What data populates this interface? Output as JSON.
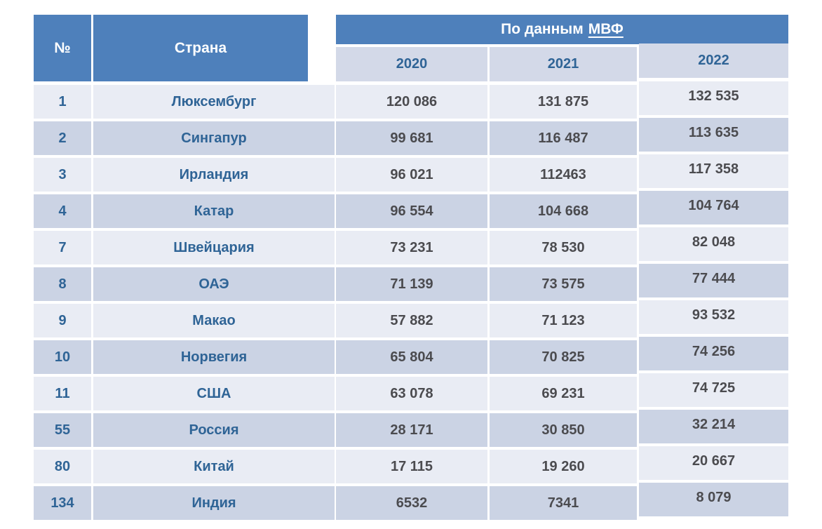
{
  "colors": {
    "header_blue": "#4e80bb",
    "subheader_bg": "#d3d9e8",
    "row_light": "#e9ecf4",
    "row_dark": "#cbd3e4",
    "blue_text": "#2f6496",
    "number_text": "#4b4b4f",
    "white_text": "#ffffff",
    "page_bg": "#ffffff"
  },
  "table": {
    "header": {
      "num": "№",
      "country": "Страна",
      "imf_prefix": "По данным",
      "imf_link": "МВФ",
      "years": {
        "y2020": "2020",
        "y2021": "2021",
        "y2022": "2022"
      }
    },
    "rows": [
      {
        "rank": "1",
        "country": "Люксембург",
        "y2020": "120 086",
        "y2021": "131 875",
        "y2022": "132 535"
      },
      {
        "rank": "2",
        "country": "Сингапур",
        "y2020": "99 681",
        "y2021": "116 487",
        "y2022": "113 635"
      },
      {
        "rank": "3",
        "country": "Ирландия",
        "y2020": "96 021",
        "y2021": "112463",
        "y2022": "117 358"
      },
      {
        "rank": "4",
        "country": "Катар",
        "y2020": "96 554",
        "y2021": "104 668",
        "y2022": "104 764"
      },
      {
        "rank": "7",
        "country": "Швейцария",
        "y2020": "73 231",
        "y2021": "78 530",
        "y2022": "82 048"
      },
      {
        "rank": "8",
        "country": "ОАЭ",
        "y2020": "71 139",
        "y2021": "73 575",
        "y2022": "77 444"
      },
      {
        "rank": "9",
        "country": "Макао",
        "y2020": "57 882",
        "y2021": "71 123",
        "y2022": "93 532"
      },
      {
        "rank": "10",
        "country": "Норвегия",
        "y2020": "65 804",
        "y2021": "70 825",
        "y2022": "74 256"
      },
      {
        "rank": "11",
        "country": "США",
        "y2020": "63 078",
        "y2021": "69 231",
        "y2022": "74 725"
      },
      {
        "rank": "55",
        "country": "Россия",
        "y2020": "28 171",
        "y2021": "30 850",
        "y2022": "32 214"
      },
      {
        "rank": "80",
        "country": "Китай",
        "y2020": "17 115",
        "y2021": "19 260",
        "y2022": "20 667"
      },
      {
        "rank": "134",
        "country": "Индия",
        "y2020": "6532",
        "y2021": "7341",
        "y2022": "8 079"
      }
    ]
  }
}
